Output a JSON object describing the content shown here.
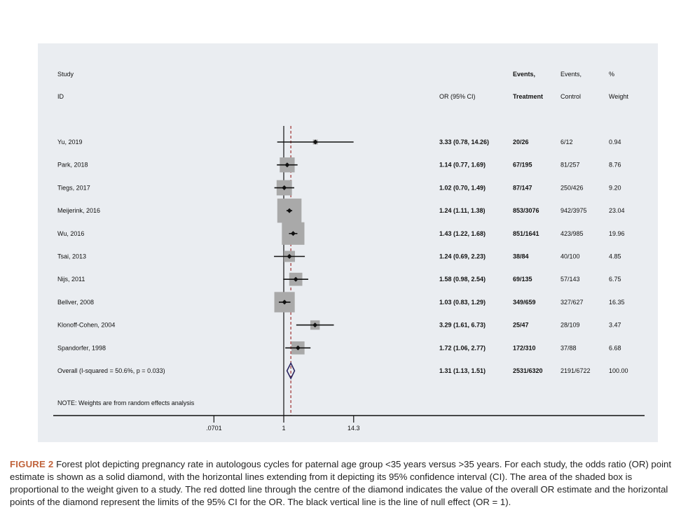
{
  "headers": {
    "study_line1": "Study",
    "study_line2": "ID",
    "or_ci": "OR (95% CI)",
    "events_t_line1": "Events,",
    "events_t_line2": "Treatment",
    "events_c_line1": "Events,",
    "events_c_line2": "Control",
    "weight_line1": "%",
    "weight_line2": "Weight"
  },
  "chart_data": {
    "type": "forest",
    "scale": "log",
    "null_value": 1,
    "x_ticks": [
      {
        "value": 0.0701,
        "label": ".0701"
      },
      {
        "value": 1,
        "label": "1"
      },
      {
        "value": 14.3,
        "label": "14.3"
      }
    ],
    "studies": [
      {
        "id": "Yu, 2019",
        "or": 3.33,
        "lo": 0.78,
        "hi": 14.26,
        "or_text": "3.33 (0.78, 14.26)",
        "events_t": "20/26",
        "events_c": "6/12",
        "weight": 0.94,
        "weight_text": "0.94"
      },
      {
        "id": "Park, 2018",
        "or": 1.14,
        "lo": 0.77,
        "hi": 1.69,
        "or_text": "1.14 (0.77, 1.69)",
        "events_t": "67/195",
        "events_c": "81/257",
        "weight": 8.76,
        "weight_text": "8.76"
      },
      {
        "id": "Tiegs, 2017",
        "or": 1.02,
        "lo": 0.7,
        "hi": 1.49,
        "or_text": "1.02 (0.70, 1.49)",
        "events_t": "87/147",
        "events_c": "250/426",
        "weight": 9.2,
        "weight_text": "9.20"
      },
      {
        "id": "Meijerink, 2016",
        "or": 1.24,
        "lo": 1.11,
        "hi": 1.38,
        "or_text": "1.24 (1.11, 1.38)",
        "events_t": "853/3076",
        "events_c": "942/3975",
        "weight": 23.04,
        "weight_text": "23.04"
      },
      {
        "id": "Wu, 2016",
        "or": 1.43,
        "lo": 1.22,
        "hi": 1.68,
        "or_text": "1.43 (1.22, 1.68)",
        "events_t": "851/1641",
        "events_c": "423/985",
        "weight": 19.96,
        "weight_text": "19.96"
      },
      {
        "id": "Tsai, 2013",
        "or": 1.24,
        "lo": 0.69,
        "hi": 2.23,
        "or_text": "1.24 (0.69, 2.23)",
        "events_t": "38/84",
        "events_c": "40/100",
        "weight": 4.85,
        "weight_text": "4.85"
      },
      {
        "id": "Nijs, 2011",
        "or": 1.58,
        "lo": 0.98,
        "hi": 2.54,
        "or_text": "1.58 (0.98, 2.54)",
        "events_t": "69/135",
        "events_c": "57/143",
        "weight": 6.75,
        "weight_text": "6.75"
      },
      {
        "id": "Bellver, 2008",
        "or": 1.03,
        "lo": 0.83,
        "hi": 1.29,
        "or_text": "1.03 (0.83, 1.29)",
        "events_t": "349/659",
        "events_c": "327/627",
        "weight": 16.35,
        "weight_text": "16.35"
      },
      {
        "id": "Klonoff-Cohen, 2004",
        "or": 3.29,
        "lo": 1.61,
        "hi": 6.73,
        "or_text": "3.29 (1.61, 6.73)",
        "events_t": "25/47",
        "events_c": "28/109",
        "weight": 3.47,
        "weight_text": "3.47"
      },
      {
        "id": "Spandorfer, 1998",
        "or": 1.72,
        "lo": 1.06,
        "hi": 2.77,
        "or_text": "1.72 (1.06, 2.77)",
        "events_t": "172/310",
        "events_c": "37/88",
        "weight": 6.68,
        "weight_text": "6.68"
      }
    ],
    "overall": {
      "id": "Overall  (I-squared = 50.6%, p = 0.033)",
      "or": 1.31,
      "lo": 1.13,
      "hi": 1.51,
      "or_text": "1.31 (1.13, 1.51)",
      "events_t": "2531/6320",
      "events_c": "2191/6722",
      "weight_text": "100.00"
    },
    "note": "NOTE: Weights are from random effects analysis",
    "colors": {
      "box": "#a9a9a9",
      "line": "#111111",
      "overall_line": "#a03030",
      "diamond": "#2b2560"
    }
  },
  "caption": {
    "label": "FIGURE 2",
    "text": " Forest plot depicting pregnancy rate in autologous cycles for paternal age group <35 years versus >35 years. For each study, the odds ratio (OR) point estimate is shown as a solid diamond, with the horizontal lines extending from it depicting its 95% confidence interval (CI). The area of the shaded box is proportional to the weight given to a study. The red dotted line through the centre of the diamond indicates the value of the overall OR estimate and the horizontal points of the diamond represent the limits of the 95% CI for the OR. The black vertical line is the line of null effect (OR = 1)."
  }
}
